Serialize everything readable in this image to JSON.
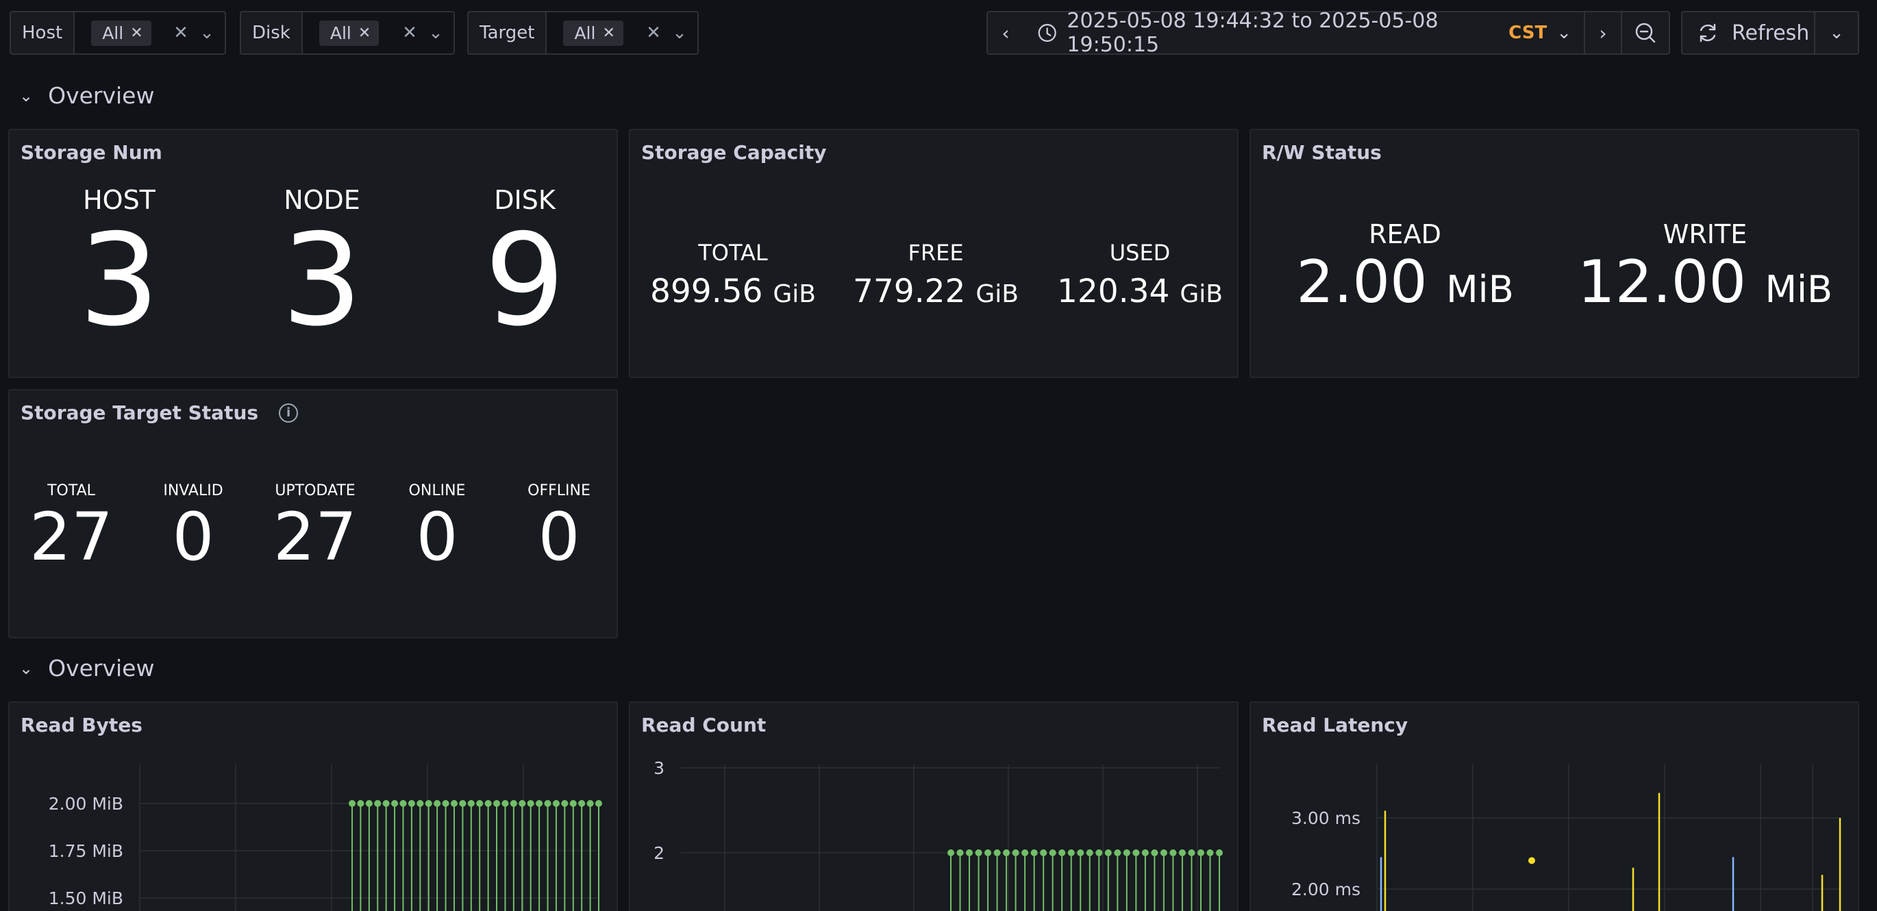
{
  "variables": [
    {
      "label": "Host",
      "value": "All"
    },
    {
      "label": "Disk",
      "value": "All"
    },
    {
      "label": "Target",
      "value": "All"
    }
  ],
  "time_picker": {
    "range": "2025-05-08 19:44:32 to 2025-05-08 19:50:15",
    "timezone": "CST",
    "refresh_label": "Refresh"
  },
  "rows": [
    "Overview",
    "Overview"
  ],
  "storage_num": {
    "title": "Storage Num",
    "items": [
      {
        "label": "HOST",
        "value": "3"
      },
      {
        "label": "NODE",
        "value": "3"
      },
      {
        "label": "DISK",
        "value": "9"
      }
    ]
  },
  "storage_capacity": {
    "title": "Storage Capacity",
    "items": [
      {
        "label": "TOTAL",
        "value": "899.56",
        "unit": "GiB"
      },
      {
        "label": "FREE",
        "value": "779.22",
        "unit": "GiB"
      },
      {
        "label": "USED",
        "value": "120.34",
        "unit": "GiB"
      }
    ]
  },
  "rw_status": {
    "title": "R/W Status",
    "items": [
      {
        "label": "READ",
        "value": "2.00",
        "unit": "MiB"
      },
      {
        "label": "WRITE",
        "value": "12.00",
        "unit": "MiB"
      }
    ]
  },
  "target_status": {
    "title": "Storage Target Status",
    "items": [
      {
        "label": "TOTAL",
        "value": "27"
      },
      {
        "label": "INVALID",
        "value": "0"
      },
      {
        "label": "UPTODATE",
        "value": "27"
      },
      {
        "label": "ONLINE",
        "value": "0"
      },
      {
        "label": "OFFLINE",
        "value": "0"
      }
    ]
  },
  "colors": {
    "green": "#73bf69",
    "yellow": "#fade2a",
    "blue": "#8ab8ff",
    "orange": "#f5a03b"
  },
  "chart_data": [
    {
      "panel_title": "Read Bytes",
      "type": "line",
      "yticks": [
        "2.00 MiB",
        "1.75 MiB",
        "1.50 MiB"
      ],
      "ytick_values": [
        2.0,
        1.75,
        1.5
      ],
      "series": [
        {
          "color": "#73bf69",
          "values": [
            2.0,
            2.0,
            2.0,
            2.0,
            2.0,
            2.0,
            2.0,
            2.0,
            2.0,
            2.0,
            2.0,
            2.0,
            2.0,
            2.0,
            2.0,
            2.0,
            2.0,
            2.0,
            2.0,
            2.0,
            2.0,
            2.0,
            2.0,
            2.0,
            2.0,
            2.0,
            2.0,
            2.0,
            2.0,
            2.0
          ]
        }
      ]
    },
    {
      "panel_title": "Read Count",
      "type": "line",
      "yticks": [
        "3",
        "2"
      ],
      "ytick_values": [
        3,
        2
      ],
      "series": [
        {
          "color": "#73bf69",
          "values": [
            2,
            2,
            2,
            2,
            2,
            2,
            2,
            2,
            2,
            2,
            2,
            2,
            2,
            2,
            2,
            2,
            2,
            2,
            2,
            2,
            2,
            2,
            2,
            2,
            2,
            2,
            2,
            2,
            2,
            2
          ]
        }
      ]
    },
    {
      "panel_title": "Read Latency",
      "type": "line",
      "yticks": [
        "3.00 ms",
        "2.00 ms"
      ],
      "ytick_values": [
        3.0,
        2.0
      ],
      "series": [
        {
          "color": "#fade2a",
          "values": [
            3.1,
            2.3,
            3.35,
            2.2,
            3.0
          ]
        },
        {
          "color": "#8ab8ff",
          "values": [
            2.45,
            2.45
          ]
        }
      ]
    }
  ]
}
